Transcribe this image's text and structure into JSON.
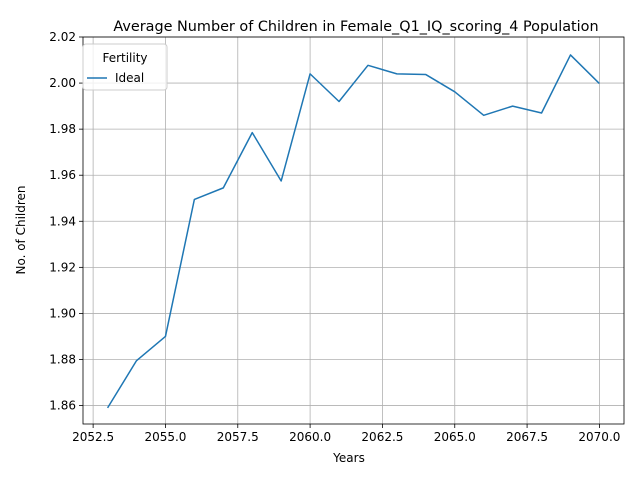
{
  "chart_data": {
    "type": "line",
    "title": "Average Number of Children in Female_Q1_IQ_scoring_4 Population",
    "xlabel": "Years",
    "ylabel": "No. of Children",
    "xlim": [
      2052.15,
      2070.85
    ],
    "ylim": [
      1.852,
      2.02
    ],
    "x_ticks": [
      2052.5,
      2055.0,
      2057.5,
      2060.0,
      2062.5,
      2065.0,
      2067.5,
      2070.0
    ],
    "x_tick_labels": [
      "2052.5",
      "2055.0",
      "2057.5",
      "2060.0",
      "2062.5",
      "2065.0",
      "2067.5",
      "2070.0"
    ],
    "y_ticks": [
      1.86,
      1.88,
      1.9,
      1.92,
      1.94,
      1.96,
      1.98,
      2.0,
      2.02
    ],
    "y_tick_labels": [
      "1.86",
      "1.88",
      "1.90",
      "1.92",
      "1.94",
      "1.96",
      "1.98",
      "2.00",
      "2.02"
    ],
    "grid": true,
    "legend": {
      "title": "Fertility",
      "placement": "top-left"
    },
    "series": [
      {
        "name": "Ideal",
        "color": "#1f77b4",
        "x": [
          2053,
          2054,
          2055,
          2056,
          2057,
          2058,
          2059,
          2060,
          2061,
          2062,
          2063,
          2064,
          2065,
          2066,
          2067,
          2068,
          2069,
          2070
        ],
        "values": [
          1.859,
          1.8795,
          1.89,
          1.9495,
          1.9545,
          1.9785,
          1.9575,
          2.004,
          1.992,
          2.0077,
          2.004,
          2.0037,
          1.9962,
          1.986,
          1.99,
          1.987,
          2.0122,
          1.9998
        ]
      }
    ]
  }
}
